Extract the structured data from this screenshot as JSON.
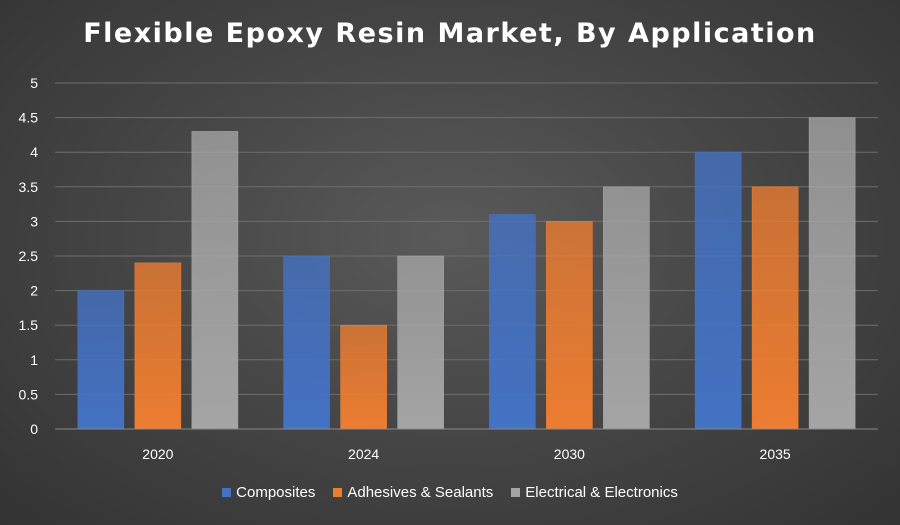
{
  "chart_data": {
    "type": "bar",
    "title": "Flexible Epoxy Resin Market, By Application",
    "categories": [
      "2020",
      "2024",
      "2030",
      "2035"
    ],
    "series": [
      {
        "name": "Composites",
        "values": [
          2.0,
          2.5,
          3.1,
          4.0
        ],
        "color": "#4472c4"
      },
      {
        "name": "Adhesives & Sealants",
        "values": [
          2.4,
          1.5,
          3.0,
          3.5
        ],
        "color": "#ed7d31"
      },
      {
        "name": "Electrical & Electronics",
        "values": [
          4.3,
          2.5,
          3.5,
          4.5
        ],
        "color": "#a5a5a5"
      }
    ],
    "yticks": [
      "0",
      "0.5",
      "1",
      "1.5",
      "2",
      "2.5",
      "3",
      "3.5",
      "4",
      "4.5",
      "5"
    ],
    "ylim": [
      0,
      5
    ],
    "xlabel": "",
    "ylabel": "",
    "grid": true,
    "legend_position": "bottom"
  }
}
